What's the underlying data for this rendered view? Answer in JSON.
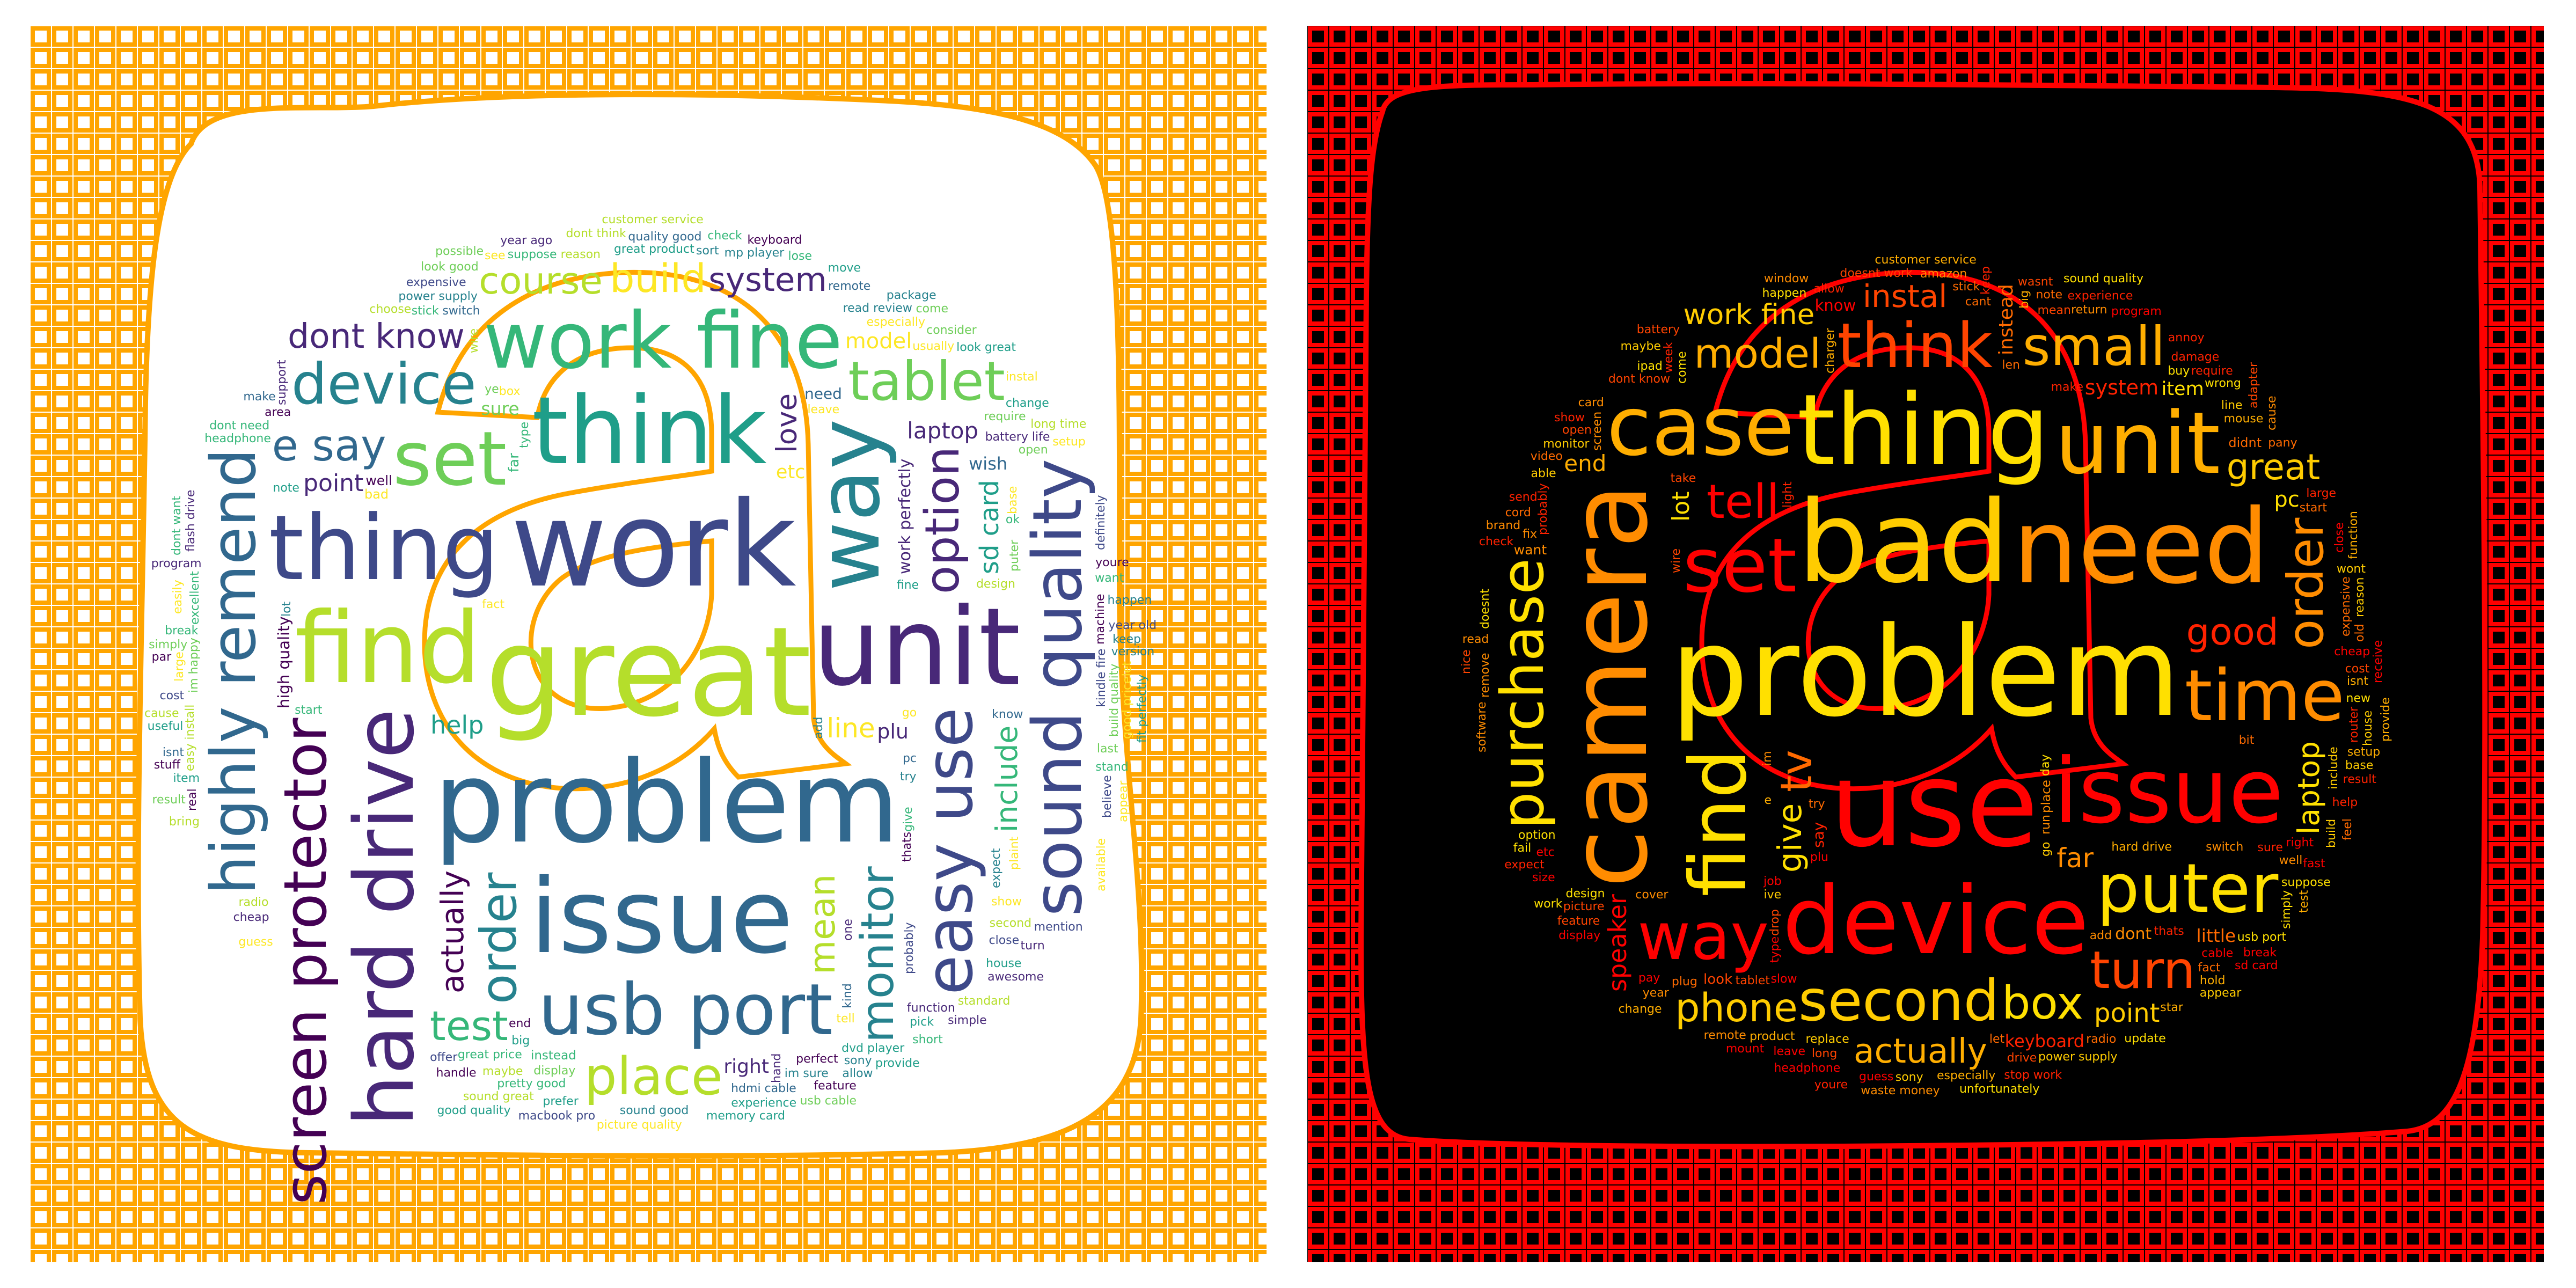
{
  "figure": {
    "panels": [
      {
        "id": "positive",
        "palette": [
          "#440154",
          "#482878",
          "#3e4989",
          "#31688e",
          "#26828e",
          "#1f9e89",
          "#35b779",
          "#6ece58",
          "#b5de2b",
          "#fde725"
        ],
        "frame_color": "#ffa500",
        "background": "#ffffff",
        "icon_fill": "#ffffff",
        "words": [
          "great",
          "work",
          "problem",
          "unit",
          "issue",
          "find",
          "think",
          "thing",
          "way",
          "hard drive",
          "work fine",
          "set",
          "usb port",
          "sound quality",
          "easy use",
          "highly remend",
          "screen protector",
          "device",
          "tablet",
          "place",
          "order",
          "option",
          "monitor",
          "e say",
          "test",
          "build",
          "course",
          "mean",
          "dont know",
          "system",
          "actually",
          "include",
          "love",
          "line",
          "sd card",
          "help",
          "point",
          "laptop",
          "model",
          "plu",
          "right",
          "etc",
          "sure",
          "wish",
          "work perfectly",
          "high quality",
          "need",
          "far",
          "well",
          "bad",
          "instead",
          "try",
          "go",
          "know",
          "type",
          "thats",
          "battery life",
          "give",
          "design",
          "display",
          "puter",
          "probably",
          "great price",
          "switch",
          "perfect",
          "especially",
          "expect",
          "start",
          "fact",
          "second",
          "maybe",
          "end",
          "note",
          "add",
          "function",
          "power supply",
          "hdmi cable",
          "read review",
          "kindle fire",
          "leave",
          "close",
          "base",
          "ye",
          "plaint",
          "pretty good",
          "im happy",
          "machine",
          "easy install",
          "stick",
          "big",
          "kind",
          "im sure",
          "require",
          "show",
          "reason",
          "excellent",
          "open",
          "great product",
          "mp player",
          "radio",
          "dvd player",
          "build quality",
          "usually",
          "suppose",
          "stand",
          "prefer",
          "handle",
          "sound good",
          "remote",
          "fine",
          "area",
          "want",
          "last",
          "break",
          "pc",
          "house",
          "pick",
          "cheap",
          "headphone",
          "quality good",
          "experience",
          "expensive",
          "large",
          "wire",
          "sony",
          "version",
          "item",
          "program",
          "simply",
          "dont think",
          "year old",
          "consider",
          "believe",
          "good pricelet",
          "sound great",
          "easily",
          "picture quality",
          "look great",
          "real",
          "keep",
          "youre",
          "tell",
          "cost",
          "happen",
          "change",
          "memory card",
          "useful",
          "short",
          "feature",
          "bring",
          "turn",
          "hand",
          "year ago",
          "flash drive",
          "choose",
          "ok",
          "check",
          "guess",
          "isnt",
          "package",
          "macbook pro",
          "long time",
          "awesome",
          "one",
          "lot",
          "dont need",
          "box",
          "look good",
          "move",
          "par",
          "allow",
          "mention",
          "customer service",
          "definitely",
          "fit perfectly",
          "standard",
          "simple",
          "come",
          "lose",
          "support",
          "keyboard",
          "stuff",
          "see",
          "available",
          "appear",
          "cause",
          "possible",
          "sort",
          "usb cable",
          "setup",
          "provide",
          "offer",
          "instal",
          "dont want",
          "result",
          "make",
          "good quality"
        ]
      },
      {
        "id": "negative",
        "palette": [
          "#ff0000",
          "#ff2200",
          "#ff4400",
          "#ff6a00",
          "#ff8c00",
          "#ffae00",
          "#ffcc00",
          "#ffe000"
        ],
        "frame_color": "#ff0000",
        "background": "#000000",
        "icon_fill": "#000000",
        "words": [
          "problem",
          "use",
          "bad",
          "camera",
          "need",
          "thing",
          "device",
          "issue",
          "unit",
          "case",
          "find",
          "set",
          "time",
          "puter",
          "way",
          "think",
          "purchase",
          "second",
          "small",
          "turn",
          "order",
          "tell",
          "box",
          "tv",
          "model",
          "phone",
          "good",
          "great",
          "actually",
          "give",
          "instal",
          "laptop",
          "work fine",
          "far",
          "point",
          "speaker",
          "lot",
          "end",
          "pc",
          "system",
          "instead",
          "item",
          "little",
          "keyboard",
          "dont",
          "know",
          "say",
          "look",
          "want",
          "didnt",
          "place",
          "try",
          "run",
          "go",
          "cover",
          "replace",
          "hard drive",
          "plug",
          "tablet",
          "switch",
          "thats",
          "cant",
          "probably",
          "mouse",
          "im",
          "include",
          "mean",
          "product",
          "design",
          "make",
          "dont know",
          "day",
          "take",
          "right",
          "well",
          "buy",
          "ive",
          "cheap",
          "len",
          "picture",
          "screen",
          "cable",
          "e",
          "long",
          "light",
          "expensive",
          "option",
          "wire",
          "line",
          "come",
          "drive",
          "start",
          "return",
          "fact",
          "fix",
          "drop",
          "etc",
          "stick",
          "allow",
          "router",
          "big",
          "new",
          "suppose",
          "usb port",
          "leave",
          "pay",
          "monitor",
          "damage",
          "feature",
          "isnt",
          "radio",
          "job",
          "week",
          "base",
          "sony",
          "note",
          "slow",
          "add",
          "wrong",
          "pany",
          "large",
          "plu",
          "able",
          "let",
          "sure",
          "happen",
          "especially",
          "doesnt work",
          "amazon",
          "help",
          "type",
          "build",
          "keep",
          "remove",
          "guess",
          "close",
          "reason",
          "power supply",
          "wont",
          "old",
          "size",
          "doesnt",
          "headphone",
          "open",
          "display",
          "cost",
          "ipad",
          "require",
          "cord",
          "remote",
          "star",
          "house",
          "result",
          "stop work",
          "software",
          "setup",
          "fast",
          "hold",
          "cause",
          "simply",
          "wasnt",
          "update",
          "year",
          "receive",
          "fail",
          "mount",
          "video",
          "expect",
          "send",
          "program",
          "work",
          "customer service",
          "waste money",
          "unfortunately",
          "experience",
          "break",
          "check",
          "window",
          "card",
          "charger",
          "annoy",
          "read",
          "sd card",
          "nice",
          "function",
          "youre",
          "adapter",
          "sound quality",
          "test",
          "bit",
          "brand",
          "appear",
          "change",
          "battery",
          "maybe",
          "show",
          "feel",
          "provide"
        ]
      }
    ]
  }
}
